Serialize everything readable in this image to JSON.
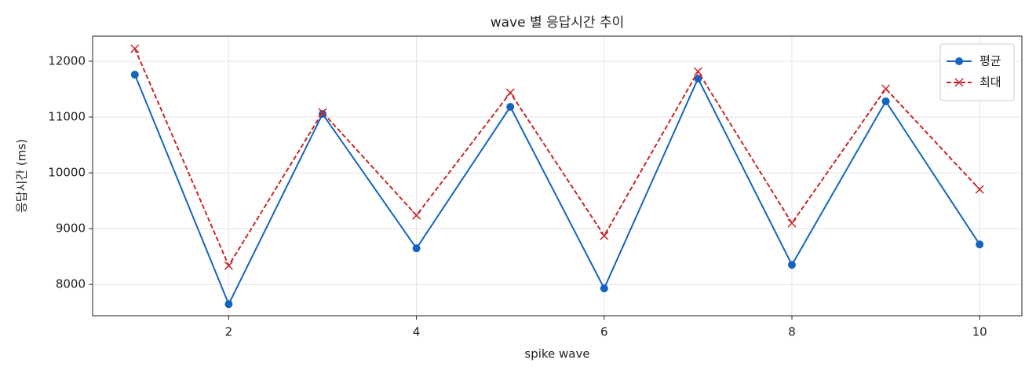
{
  "chart_data": {
    "type": "line",
    "title": "wave 별 응답시간 추이",
    "x_label": "spike wave",
    "y_label": "응답시간 (ms)",
    "x": [
      1,
      2,
      3,
      4,
      5,
      6,
      7,
      8,
      9,
      10
    ],
    "series": [
      {
        "name": "평균",
        "color": "#1565c0",
        "marker": "o",
        "dash": false,
        "values": [
          11760,
          7648,
          11056,
          8648,
          11183,
          7930,
          11690,
          8352,
          11282,
          8718
        ]
      },
      {
        "name": "최대",
        "color": "#c62828",
        "marker": "x",
        "dash": true,
        "values": [
          12225,
          8338,
          11085,
          9239,
          11437,
          8873,
          11817,
          9099,
          11507,
          9704
        ]
      }
    ],
    "xlim": [
      0.55,
      10.45
    ],
    "xticks": [
      2,
      4,
      6,
      8,
      10
    ],
    "ylim": [
      7440,
      12450
    ],
    "yticks": [
      8000,
      9000,
      10000,
      11000,
      12000
    ],
    "grid": true,
    "legend": "upper right"
  }
}
